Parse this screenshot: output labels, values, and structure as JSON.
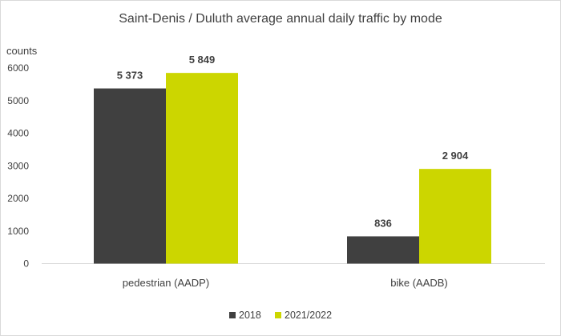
{
  "chart_data": {
    "type": "bar",
    "title": "Saint-Denis / Duluth average annual daily traffic by mode",
    "ylabel": "counts",
    "xlabel": "",
    "categories": [
      "pedestrian (AADP)",
      "bike (AADB)"
    ],
    "series": [
      {
        "name": "2018",
        "values": [
          5373,
          836
        ],
        "labels": [
          "5 373",
          "836"
        ],
        "color": "#404040"
      },
      {
        "name": "2021/2022",
        "values": [
          5849,
          2904
        ],
        "labels": [
          "5 849",
          "2 904"
        ],
        "color": "#ccd600"
      }
    ],
    "ylim": [
      0,
      6000
    ],
    "yticks": [
      0,
      1000,
      2000,
      3000,
      4000,
      5000,
      6000
    ],
    "grid": false,
    "legend_position": "bottom"
  }
}
